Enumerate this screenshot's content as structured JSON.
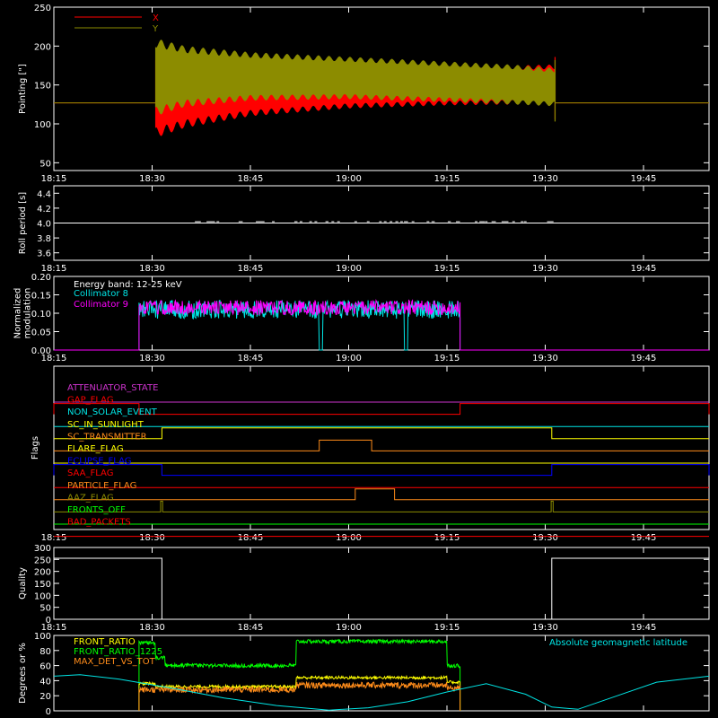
{
  "time_axis": {
    "ticks": [
      "18:15",
      "18:30",
      "18:45",
      "19:00",
      "19:15",
      "19:30",
      "19:45"
    ],
    "tick_minutes": [
      0,
      15,
      30,
      45,
      60,
      75,
      90
    ],
    "range_minutes": [
      0,
      100
    ]
  },
  "colors": {
    "red": "#ff0000",
    "olive": "#8c8c00",
    "white": "#ffffff",
    "cyan": "#00e5e5",
    "magenta": "#ff00ff",
    "green": "#00ff00",
    "orange": "#ff8c1a",
    "yellow": "#ffff00",
    "blue": "#0000ff",
    "purple": "#cc33cc"
  },
  "chart_data": [
    {
      "type": "area",
      "panel": "pointing",
      "ylabel": "Pointing [\"]",
      "ylim": [
        40,
        250
      ],
      "yticks": [
        50,
        100,
        150,
        200,
        250
      ],
      "series": [
        {
          "name": "X",
          "color": "#ff0000",
          "baseline": 127,
          "start": 15.5,
          "end": 76.5,
          "upper": {
            "x": [
              15.5,
              20,
              30,
              45,
              60,
              70,
              76
            ],
            "y": [
              195,
              185,
              178,
              175,
              174,
              175,
              176
            ]
          },
          "lower": {
            "x": [
              15.5,
              20,
              30,
              45,
              60,
              70,
              76
            ],
            "y": [
              82,
              95,
              110,
              120,
              124,
              125,
              126
            ]
          }
        },
        {
          "name": "Y",
          "color": "#8c8c00",
          "baseline": 127,
          "start": 15.5,
          "end": 76.5,
          "upper": {
            "x": [
              15.5,
              20,
              30,
              45,
              60,
              70,
              76
            ],
            "y": [
              210,
              200,
              192,
              186,
              180,
              176,
              172
            ]
          },
          "lower": {
            "x": [
              15.5,
              20,
              30,
              45,
              60,
              70,
              76
            ],
            "y": [
              110,
              122,
              130,
              132,
              128,
              125,
              123
            ]
          }
        }
      ]
    },
    {
      "type": "line",
      "panel": "roll_period",
      "ylabel": "Roll period [s]",
      "ylim": [
        3.5,
        4.5
      ],
      "yticks": [
        "3.6",
        "3.8",
        "4.0",
        "4.2",
        "4.4"
      ],
      "ytick_values": [
        3.6,
        3.8,
        4.0,
        4.2,
        4.4
      ],
      "series": [
        {
          "color": "#ffffff",
          "value": 4.0
        }
      ]
    },
    {
      "type": "line",
      "panel": "modulation",
      "ylabel": "Normalized modulation",
      "ylim": [
        0,
        0.2
      ],
      "yticks": [
        "0.00",
        "0.05",
        "0.10",
        "0.15",
        "0.20"
      ],
      "ytick_values": [
        0,
        0.05,
        0.1,
        0.15,
        0.2
      ],
      "annotation": "Energy band: 12-25 keV",
      "series": [
        {
          "name": "Collimator 8",
          "color": "#00e5e5",
          "start": 13,
          "end": 62,
          "mean": 0.11,
          "spread": 0.025,
          "dips": [
            [
              40.5,
              41
            ],
            [
              53.5,
              54
            ]
          ]
        },
        {
          "name": "Collimator 9",
          "color": "#ff00ff",
          "start": 13,
          "end": 62,
          "mean": 0.115,
          "spread": 0.02,
          "dips": []
        }
      ]
    },
    {
      "type": "line",
      "panel": "flags",
      "ylabel": "Flags",
      "series": [
        {
          "name": "ATTENUATOR_STATE",
          "color": "#cc33cc",
          "high": []
        },
        {
          "name": "GAP_FLAG",
          "color": "#ff0000",
          "high": [
            [
              0,
              13
            ],
            [
              62,
              100
            ]
          ]
        },
        {
          "name": "NON_SOLAR_EVENT",
          "color": "#00e5e5",
          "high": []
        },
        {
          "name": "SC_IN_SUNLIGHT",
          "color": "#ffff00",
          "high": [
            [
              16.5,
              76
            ]
          ]
        },
        {
          "name": "SC_TRANSMITTER",
          "color": "#ff8c1a",
          "high": [
            [
              40.5,
              48.5
            ]
          ]
        },
        {
          "name": "FLARE_FLAG",
          "color": "#ffff00",
          "high": []
        },
        {
          "name": "ECLIPSE_FLAG",
          "color": "#0000ff",
          "high": [
            [
              0,
              16.5
            ],
            [
              76,
              100
            ]
          ]
        },
        {
          "name": "SAA_FLAG",
          "color": "#ff0000",
          "high": []
        },
        {
          "name": "PARTICLE_FLAG",
          "color": "#ff8c1a",
          "high": [
            [
              46,
              52
            ]
          ]
        },
        {
          "name": "AAZ_FLAG",
          "color": "#8c8c00",
          "high": [
            [
              16.3,
              16.6
            ],
            [
              75.9,
              76.2
            ]
          ]
        },
        {
          "name": "FRONTS_OFF",
          "color": "#00ff00",
          "high": []
        },
        {
          "name": "BAD_PACKETS",
          "color": "#ff0000",
          "high": []
        }
      ]
    },
    {
      "type": "line",
      "panel": "quality",
      "ylabel": "Quality",
      "ylim": [
        0,
        300
      ],
      "yticks": [
        "0",
        "50",
        "100",
        "150",
        "200",
        "250",
        "300"
      ],
      "ytick_values": [
        0,
        50,
        100,
        150,
        200,
        250,
        300
      ],
      "series": [
        {
          "color": "#ffffff",
          "x": [
            0,
            16.5,
            16.5,
            76,
            76,
            100
          ],
          "y": [
            255,
            255,
            0,
            0,
            255,
            255
          ]
        }
      ]
    },
    {
      "type": "line",
      "panel": "geomag",
      "ylabel": "Degrees or %",
      "ylim": [
        0,
        100
      ],
      "yticks": [
        "0",
        "20",
        "40",
        "60",
        "80",
        "100"
      ],
      "ytick_values": [
        0,
        20,
        40,
        60,
        80,
        100
      ],
      "annotation": "Absolute geomagnetic latitude",
      "series": [
        {
          "name": "FRONT_RATIO",
          "color": "#ffff00",
          "start": 13,
          "end": 62
        },
        {
          "name": "FRONT_RATIO_1225",
          "color": "#00ff00",
          "start": 13,
          "end": 62
        },
        {
          "name": "MAX_DET_VS_TOT",
          "color": "#ff8c1a",
          "start": 13,
          "end": 62
        },
        {
          "name": "Absolute geomagnetic latitude",
          "color": "#00e5e5",
          "x": [
            0,
            4,
            10,
            18,
            26,
            34,
            42,
            48,
            54,
            60,
            66,
            72,
            76,
            80,
            86,
            92,
            100
          ],
          "y": [
            46,
            48,
            42,
            30,
            17,
            7,
            1,
            4,
            12,
            25,
            36,
            22,
            5,
            2,
            20,
            38,
            46
          ]
        }
      ]
    }
  ]
}
